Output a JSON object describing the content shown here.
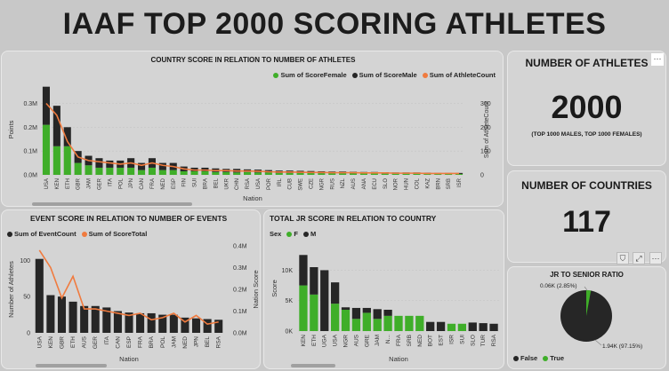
{
  "page_title": "IAAF TOP 2000 SCORING ATHLETES",
  "colors": {
    "female": "#3fae29",
    "male": "#262626",
    "line": "#f07b3f"
  },
  "country_chart": {
    "title": "COUNTRY SCORE IN RELATION TO NUMBER OF ATHLETES",
    "legend": [
      "Sum of ScoreFemale",
      "Sum of ScoreMale",
      "Sum of AthleteCount"
    ],
    "ylabel": "Points",
    "y2label": "Sum of AthleteCount",
    "xlabel": "Nation",
    "y_ticks": [
      "0.3M",
      "0.2M",
      "0.1M",
      "0.0M"
    ],
    "y2_ticks": [
      "300",
      "200",
      "100",
      "0"
    ]
  },
  "event_chart": {
    "title": "EVENT SCORE IN RELATION TO NUMBER OF EVENTS",
    "legend": [
      "Sum of EventCount",
      "Sum of ScoreTotal"
    ],
    "ylabel": "Number of Athletes",
    "y2label": "Nation Score",
    "xlabel": "Nation",
    "y_ticks": [
      "100",
      "50",
      "0"
    ],
    "y2_ticks": [
      "0.4M",
      "0.3M",
      "0.2M",
      "0.1M",
      "0.0M"
    ]
  },
  "jr_chart": {
    "title": "TOTAL JR SCORE IN RELATION TO COUNTRY",
    "legend_label": "Sex",
    "legend": [
      "F",
      "M"
    ],
    "ylabel": "Score",
    "xlabel": "Nation",
    "y_ticks": [
      "10K",
      "5K",
      "0K"
    ]
  },
  "athletes_card": {
    "title": "NUMBER OF ATHLETES",
    "value": "2000",
    "subtitle": "(TOP 1000 MALES, TOP 1000 FEMALES)"
  },
  "countries_card": {
    "title": "NUMBER OF COUNTRIES",
    "value": "117"
  },
  "ratio_card": {
    "title": "JR TO SENIOR RATIO",
    "true_label": "0.06K (2.85%)",
    "false_label": "1.94K (97.15%)",
    "legend": [
      "False",
      "True"
    ]
  },
  "chart_data": [
    {
      "type": "bar",
      "title": "COUNTRY SCORE IN RELATION TO NUMBER OF ATHLETES",
      "xlabel": "Nation",
      "ylabel": "Points",
      "y2label": "Sum of AthleteCount",
      "ylim": [
        0,
        0.38
      ],
      "y2lim": [
        0,
        380
      ],
      "categories": [
        "USA",
        "KEN",
        "ETH",
        "GBR",
        "JAM",
        "GER",
        "ITA",
        "POL",
        "JPN",
        "CAN",
        "FRA",
        "NED",
        "ESP",
        "FIN",
        "SUI",
        "BRA",
        "BEL",
        "UKR",
        "CHN",
        "RSA",
        "USA",
        "POR",
        "IRL",
        "CUB",
        "SWE",
        "CZE",
        "NGR",
        "RUS",
        "NZL",
        "AUS",
        "ANA",
        "ECU",
        "SLO",
        "NOR",
        "HUN",
        "COL",
        "KAZ",
        "BRN",
        "SRB",
        "ISR"
      ],
      "series": [
        {
          "name": "Sum of ScoreFemale",
          "stack": true,
          "values": [
            0.21,
            0.12,
            0.12,
            0.05,
            0.04,
            0.03,
            0.03,
            0.03,
            0.03,
            0.02,
            0.03,
            0.02,
            0.02,
            0.015,
            0.015,
            0.015,
            0.012,
            0.012,
            0.01,
            0.012,
            0.01,
            0.01,
            0.008,
            0.008,
            0.008,
            0.008,
            0.007,
            0.007,
            0.007,
            0.006,
            0.006,
            0.006,
            0.005,
            0.005,
            0.005,
            0.005,
            0.005,
            0.004,
            0.004,
            0.004
          ]
        },
        {
          "name": "Sum of ScoreMale",
          "stack": true,
          "values": [
            0.16,
            0.17,
            0.08,
            0.05,
            0.04,
            0.04,
            0.03,
            0.03,
            0.04,
            0.03,
            0.04,
            0.03,
            0.03,
            0.02,
            0.015,
            0.015,
            0.015,
            0.013,
            0.015,
            0.011,
            0.012,
            0.01,
            0.01,
            0.01,
            0.009,
            0.008,
            0.008,
            0.007,
            0.007,
            0.007,
            0.006,
            0.006,
            0.006,
            0.005,
            0.005,
            0.005,
            0.004,
            0.004,
            0.004,
            0.004
          ]
        },
        {
          "name": "Sum of AthleteCount",
          "axis": "right",
          "values": [
            300,
            250,
            140,
            75,
            60,
            55,
            50,
            45,
            50,
            40,
            50,
            40,
            35,
            25,
            20,
            20,
            18,
            18,
            16,
            16,
            15,
            13,
            12,
            12,
            11,
            10,
            10,
            9,
            9,
            9,
            8,
            8,
            8,
            7,
            7,
            7,
            6,
            6,
            6,
            6
          ]
        }
      ]
    },
    {
      "type": "bar",
      "title": "EVENT SCORE IN RELATION TO NUMBER OF EVENTS",
      "xlabel": "Nation",
      "ylabel": "Number of Athletes",
      "y2label": "Nation Score",
      "ylim": [
        0,
        120
      ],
      "y2lim": [
        0,
        0.4
      ],
      "categories": [
        "USA",
        "KEN",
        "GBR",
        "ETH",
        "AUS",
        "GER",
        "ITA",
        "CAN",
        "ESP",
        "FRA",
        "BRA",
        "POL",
        "JAM",
        "NED",
        "JPN",
        "BEL",
        "RSA"
      ],
      "series": [
        {
          "name": "Sum of EventCount",
          "values": [
            102,
            52,
            50,
            43,
            37,
            37,
            35,
            30,
            28,
            27,
            27,
            25,
            25,
            21,
            20,
            19,
            18
          ]
        },
        {
          "name": "Sum of ScoreTotal",
          "axis": "right",
          "values": [
            0.38,
            0.3,
            0.16,
            0.26,
            0.11,
            0.11,
            0.1,
            0.09,
            0.08,
            0.09,
            0.06,
            0.07,
            0.09,
            0.05,
            0.08,
            0.04,
            0.05
          ]
        }
      ]
    },
    {
      "type": "bar",
      "title": "TOTAL JR SCORE IN RELATION TO COUNTRY",
      "xlabel": "Nation",
      "ylabel": "Score",
      "ylim": [
        0,
        14000
      ],
      "categories": [
        "KEN",
        "ETH",
        "UGA",
        "USA",
        "NGR",
        "AUS",
        "GRE",
        "JAM",
        "N...",
        "FRA",
        "SRB",
        "NED",
        "BOT",
        "EST",
        "ISR",
        "SUI",
        "SLO",
        "TUR",
        "RSA"
      ],
      "series": [
        {
          "name": "F",
          "values": [
            7500,
            6000,
            0,
            4500,
            3500,
            2000,
            3000,
            2000,
            2500,
            2500,
            2500,
            2500,
            0,
            0,
            1200,
            1200,
            0,
            0,
            0
          ]
        },
        {
          "name": "M",
          "values": [
            5000,
            4500,
            10000,
            3500,
            400,
            1800,
            800,
            1600,
            1000,
            0,
            0,
            0,
            1500,
            1500,
            0,
            0,
            1400,
            1300,
            1200
          ]
        }
      ]
    },
    {
      "type": "pie",
      "title": "JR TO SENIOR RATIO",
      "categories": [
        "False",
        "True"
      ],
      "values": [
        1940,
        60
      ]
    }
  ]
}
